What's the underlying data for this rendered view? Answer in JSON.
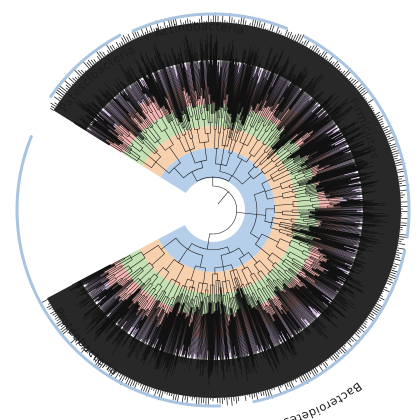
{
  "figure": {
    "colors": {
      "background": "#ffffff",
      "branches": "#111111",
      "arc": "#a9c4e1",
      "band_blue": "#a8c7e6",
      "band_orange": "#f6c8a0",
      "band_green": "#b9dca5",
      "band_red": "#f2a9a6",
      "band_purple": "#cdb2dc"
    },
    "clades": [
      {
        "label": "Actinobacteria"
      },
      {
        "label": "Firmicutes"
      },
      {
        "label": "Bacteroidetes"
      },
      {
        "label": "Proteobacteria"
      },
      {
        "label": "Patescibacteria"
      }
    ]
  }
}
